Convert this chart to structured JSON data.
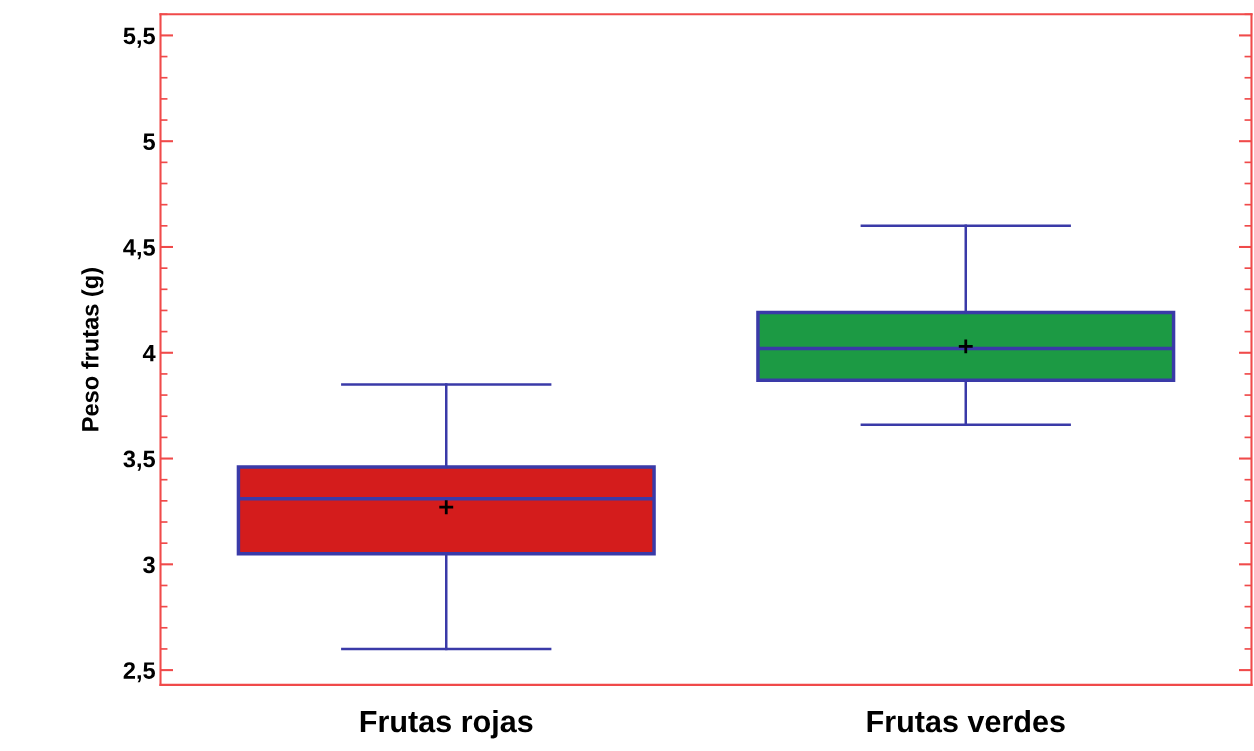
{
  "chart_data": {
    "type": "box",
    "ylabel": "Peso frutas (g)",
    "categories": [
      "Frutas rojas",
      "Frutas verdes"
    ],
    "colors": [
      "#d41c1c",
      "#1c9a44"
    ],
    "boxes": [
      {
        "low": 2.6,
        "q1": 3.05,
        "median": 3.31,
        "q3": 3.46,
        "high": 3.85,
        "mean": 3.27
      },
      {
        "low": 3.66,
        "q1": 3.87,
        "median": 4.02,
        "q3": 4.19,
        "high": 4.6,
        "mean": 4.03
      }
    ],
    "ylim": [
      2.43,
      5.6
    ],
    "yticks": [
      {
        "value": 2.5,
        "label": "2,5"
      },
      3,
      {
        "value": 3.5,
        "label": "3,5"
      },
      4,
      {
        "value": 4.5,
        "label": "4,5"
      },
      5,
      {
        "value": 5.5,
        "label": "5,5"
      }
    ],
    "grid": false,
    "legend": false
  }
}
